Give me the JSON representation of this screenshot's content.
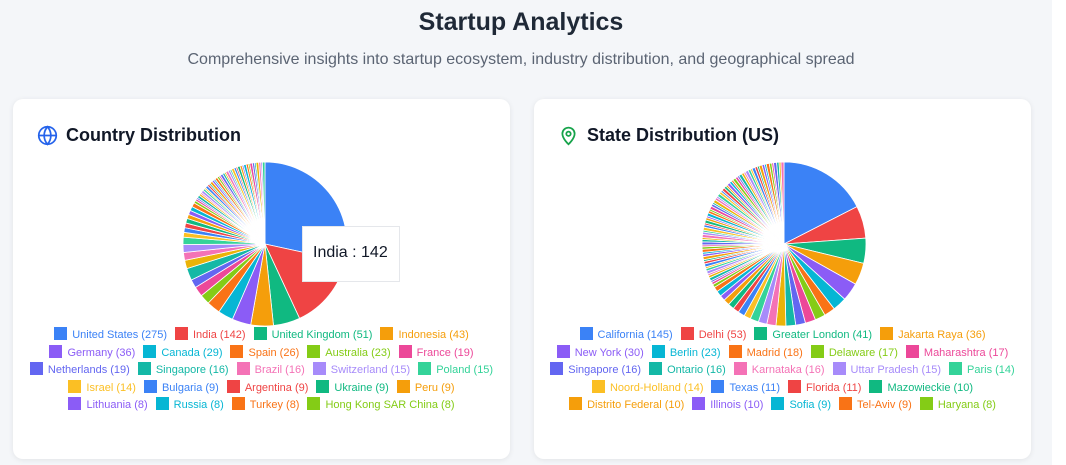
{
  "header": {
    "title": "Startup Analytics",
    "subtitle": "Comprehensive insights into startup ecosystem, industry distribution, and geographical spread"
  },
  "palette": [
    "#3b82f6",
    "#ef4444",
    "#10b981",
    "#f59e0b",
    "#8b5cf6",
    "#06b6d4",
    "#f97316",
    "#84cc16",
    "#ec4899",
    "#6366f1",
    "#14b8a6",
    "#eab308",
    "#f472b6",
    "#a78bfa",
    "#34d399",
    "#fbbf24"
  ],
  "country_card": {
    "title": "Country Distribution",
    "icon": "globe-icon",
    "tooltip": "India : 142",
    "chart_data": {
      "type": "pie",
      "title": "Country Distribution",
      "labels": [
        "United States",
        "India",
        "United Kingdom",
        "Indonesia",
        "Germany",
        "Canada",
        "Spain",
        "France",
        "Netherlands",
        "Singapore",
        "Australia",
        "Brazil",
        "Switzerland",
        "Poland",
        "Israel",
        "Bulgaria",
        "Argentina",
        "Ukraine",
        "Peru",
        "Lithuania",
        "Russia",
        "Turkey",
        "Hong Kong SAR China"
      ],
      "values": [
        275,
        142,
        51,
        43,
        36,
        29,
        26,
        19,
        19,
        16,
        23,
        16,
        15,
        15,
        14,
        9,
        9,
        9,
        9,
        8,
        8,
        8,
        8
      ],
      "extra_small_slices": 40,
      "legend": [
        {
          "label": "United States (275)",
          "color": "#3b82f6"
        },
        {
          "label": "India (142)",
          "color": "#ef4444"
        },
        {
          "label": "United Kingdom (51)",
          "color": "#10b981"
        },
        {
          "label": "Indonesia (43)",
          "color": "#f59e0b"
        },
        {
          "label": "Germany (36)",
          "color": "#8b5cf6"
        },
        {
          "label": "Canada (29)",
          "color": "#06b6d4"
        },
        {
          "label": "Spain (26)",
          "color": "#f97316"
        },
        {
          "label": "Australia (23)",
          "color": "#84cc16"
        },
        {
          "label": "France (19)",
          "color": "#ec4899"
        },
        {
          "label": "Netherlands (19)",
          "color": "#6366f1"
        },
        {
          "label": "Singapore (16)",
          "color": "#14b8a6"
        },
        {
          "label": "Brazil (16)",
          "color": "#f472b6"
        },
        {
          "label": "Switzerland (15)",
          "color": "#a78bfa"
        },
        {
          "label": "Poland (15)",
          "color": "#34d399"
        },
        {
          "label": "Israel (14)",
          "color": "#fbbf24"
        },
        {
          "label": "Bulgaria (9)",
          "color": "#3b82f6"
        },
        {
          "label": "Argentina (9)",
          "color": "#ef4444"
        },
        {
          "label": "Ukraine (9)",
          "color": "#10b981"
        },
        {
          "label": "Peru (9)",
          "color": "#f59e0b"
        },
        {
          "label": "Lithuania (8)",
          "color": "#8b5cf6"
        },
        {
          "label": "Russia (8)",
          "color": "#06b6d4"
        },
        {
          "label": "Turkey (8)",
          "color": "#f97316"
        },
        {
          "label": "Hong Kong SAR China (8)",
          "color": "#84cc16"
        }
      ]
    }
  },
  "state_card": {
    "title": "State Distribution (US)",
    "icon": "map-pin-icon",
    "chart_data": {
      "type": "pie",
      "title": "State Distribution (US)",
      "labels": [
        "California",
        "Delhi",
        "Greater London",
        "Jakarta Raya",
        "New York",
        "Berlin",
        "Madrid",
        "Delaware",
        "Maharashtra",
        "Singapore",
        "Ontario",
        "Karnataka",
        "Uttar Pradesh",
        "Paris",
        "Noord-Holland",
        "Texas",
        "Florida",
        "Mazowieckie",
        "Distrito Federal",
        "Illinois",
        "Sofia",
        "Tel-Aviv",
        "Haryana"
      ],
      "values": [
        145,
        53,
        41,
        36,
        30,
        23,
        18,
        17,
        17,
        16,
        16,
        16,
        15,
        14,
        14,
        11,
        11,
        10,
        10,
        10,
        9,
        9,
        8
      ],
      "extra_small_slices": 70,
      "legend": [
        {
          "label": "California (145)",
          "color": "#3b82f6"
        },
        {
          "label": "Delhi (53)",
          "color": "#ef4444"
        },
        {
          "label": "Greater London (41)",
          "color": "#10b981"
        },
        {
          "label": "Jakarta Raya (36)",
          "color": "#f59e0b"
        },
        {
          "label": "New York (30)",
          "color": "#8b5cf6"
        },
        {
          "label": "Berlin (23)",
          "color": "#06b6d4"
        },
        {
          "label": "Madrid (18)",
          "color": "#f97316"
        },
        {
          "label": "Delaware (17)",
          "color": "#84cc16"
        },
        {
          "label": "Maharashtra (17)",
          "color": "#ec4899"
        },
        {
          "label": "Singapore (16)",
          "color": "#6366f1"
        },
        {
          "label": "Ontario (16)",
          "color": "#14b8a6"
        },
        {
          "label": "Karnataka (16)",
          "color": "#f472b6"
        },
        {
          "label": "Uttar Pradesh (15)",
          "color": "#a78bfa"
        },
        {
          "label": "Paris (14)",
          "color": "#34d399"
        },
        {
          "label": "Noord-Holland (14)",
          "color": "#fbbf24"
        },
        {
          "label": "Texas (11)",
          "color": "#3b82f6"
        },
        {
          "label": "Florida (11)",
          "color": "#ef4444"
        },
        {
          "label": "Mazowieckie (10)",
          "color": "#10b981"
        },
        {
          "label": "Distrito Federal (10)",
          "color": "#f59e0b"
        },
        {
          "label": "Illinois (10)",
          "color": "#8b5cf6"
        },
        {
          "label": "Sofia (9)",
          "color": "#06b6d4"
        },
        {
          "label": "Tel-Aviv (9)",
          "color": "#f97316"
        },
        {
          "label": "Haryana (8)",
          "color": "#84cc16"
        }
      ]
    }
  }
}
